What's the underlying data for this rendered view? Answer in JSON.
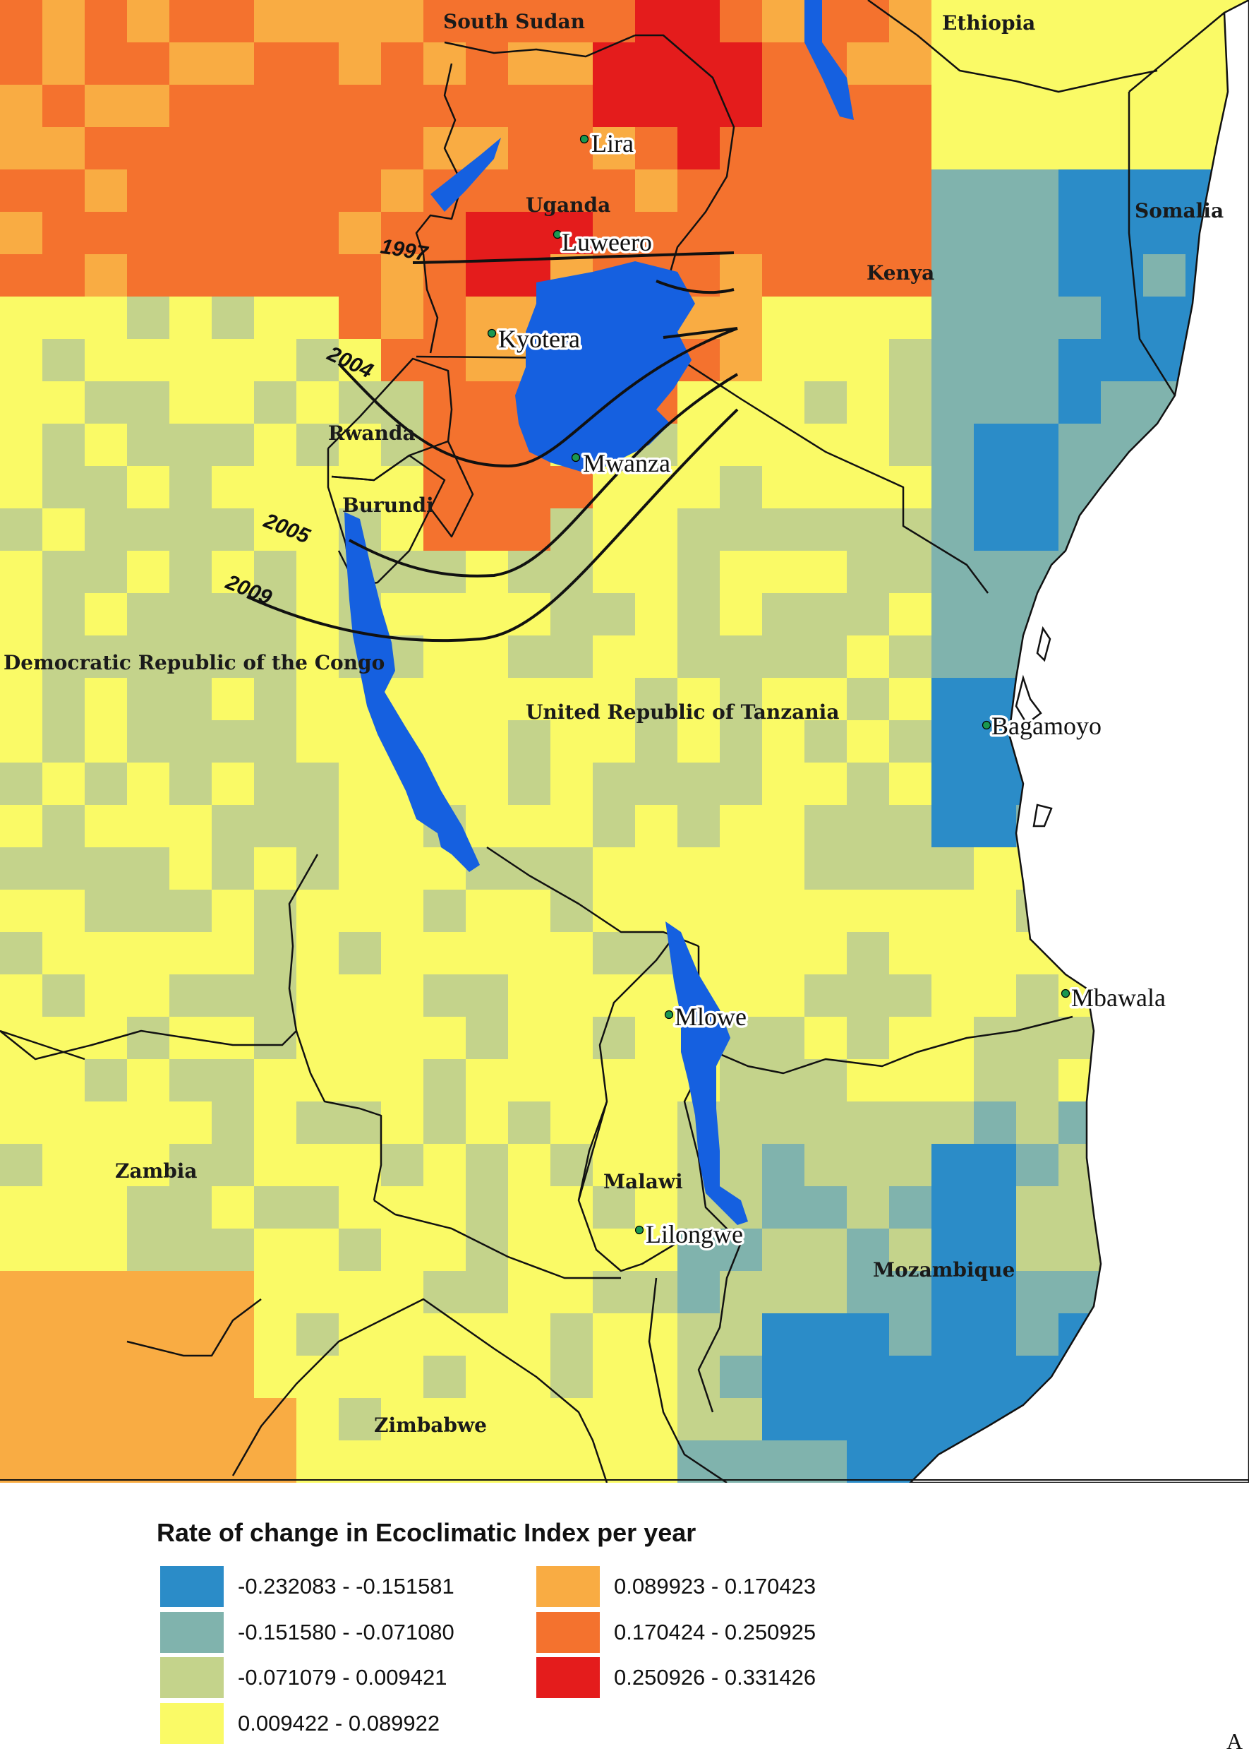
{
  "colors": {
    "background": "#ffffff",
    "water": "#1560e0",
    "border": "#111111",
    "migration_line": "#111111"
  },
  "legend": {
    "title": "Rate of change in Ecoclimatic Index per year",
    "classes": [
      {
        "label": "-0.232083 - -0.151581",
        "color": "#2b8cc8"
      },
      {
        "label": "-0.151580 - -0.071080",
        "color": "#80b3ad"
      },
      {
        "label": "-0.071079 - 0.009421",
        "color": "#c4d38b"
      },
      {
        "label": "0.009422 - 0.089922",
        "color": "#fafa66"
      },
      {
        "label": "0.089923 - 0.170423",
        "color": "#f9ac43"
      },
      {
        "label": "0.170424 - 0.250925",
        "color": "#f4722e"
      },
      {
        "label": "0.250926 - 0.331426",
        "color": "#e41c1c"
      }
    ]
  },
  "countries": [
    "South Sudan",
    "Ethiopia",
    "Uganda",
    "Somalia",
    "Kenya",
    "Rwanda",
    "Burundi",
    "Democratic Republic of the Congo",
    "United Republic of Tanzania",
    "Zambia",
    "Malawi",
    "Mozambique",
    "Zimbabwe"
  ],
  "cities": [
    "Lira",
    "Luweero",
    "Kyotera",
    "Mwanza",
    "Bagamoyo",
    "Mbawala",
    "Mlowe",
    "Lilongwe"
  ],
  "spread_years": [
    "1997",
    "2004",
    "2005",
    "2009"
  ],
  "panel_letter": "A"
}
